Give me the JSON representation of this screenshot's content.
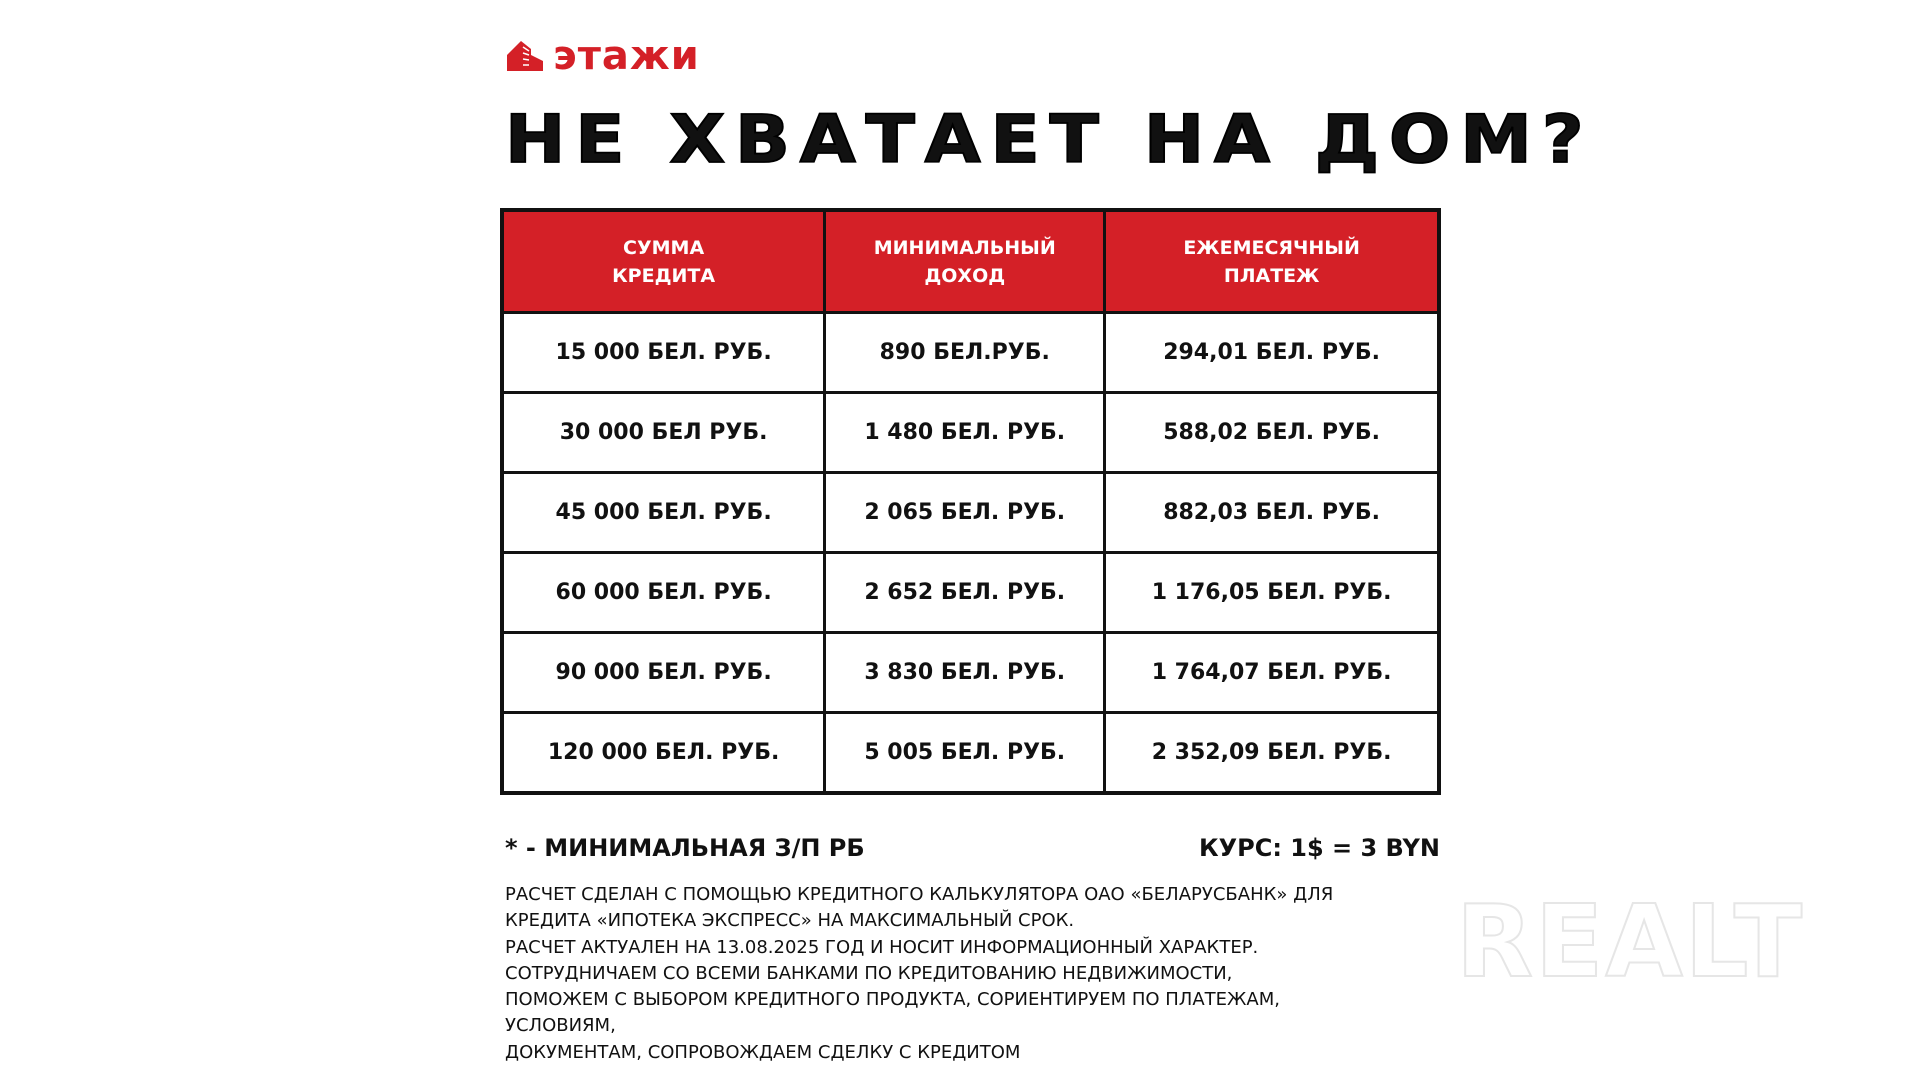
{
  "brand": {
    "logo_text": "этажи",
    "accent_color": "#d42027",
    "icon": "building-icon"
  },
  "title": "НЕ ХВАТАЕТ НА ДОМ?",
  "table": {
    "headers": [
      [
        "СУММА",
        "КРЕДИТА"
      ],
      [
        "МИНИМАЛЬНЫЙ",
        "ДОХОД"
      ],
      [
        "ЕЖЕМЕСЯЧНЫЙ",
        "ПЛАТЕЖ"
      ]
    ],
    "rows": [
      [
        "15 000 БЕЛ. РУБ.",
        "890 БЕЛ.РУБ.",
        "294,01 БЕЛ. РУБ."
      ],
      [
        "30 000 БЕЛ РУБ.",
        "1 480 БЕЛ. РУБ.",
        "588,02 БЕЛ. РУБ."
      ],
      [
        "45 000 БЕЛ. РУБ.",
        "2 065 БЕЛ. РУБ.",
        "882,03 БЕЛ. РУБ."
      ],
      [
        "60 000 БЕЛ. РУБ.",
        "2 652 БЕЛ. РУБ.",
        "1 176,05 БЕЛ. РУБ."
      ],
      [
        "90 000 БЕЛ. РУБ.",
        "3 830 БЕЛ. РУБ.",
        "1 764,07 БЕЛ. РУБ."
      ],
      [
        "120 000 БЕЛ. РУБ.",
        "5 005 БЕЛ. РУБ.",
        "2 352,09 БЕЛ. РУБ."
      ]
    ]
  },
  "notes": {
    "left": "* - МИНИМАЛЬНАЯ З/П РБ",
    "right": "КУРС: 1$ = 3 BYN"
  },
  "fine_print": [
    "РАСЧЕТ СДЕЛАН С ПОМОЩЬЮ КРЕДИТНОГО КАЛЬКУЛЯТОРА ОАО «БЕЛАРУСБАНК» ДЛЯ",
    "КРЕДИТА «ИПОТЕКА ЭКСПРЕСС» НА МАКСИМАЛЬНЫЙ СРОК.",
    "РАСЧЕТ АКТУАЛЕН НА 13.08.2025 ГОД И НОСИТ ИНФОРМАЦИОННЫЙ ХАРАКТЕР.",
    "СОТРУДНИЧАЕМ СО ВСЕМИ БАНКАМИ ПО КРЕДИТОВАНИЮ НЕДВИЖИМОСТИ,",
    "ПОМОЖЕМ С ВЫБОРОМ КРЕДИТНОГО ПРОДУКТА, СОРИЕНТИРУЕМ ПО ПЛАТЕЖАМ,",
    "УСЛОВИЯМ,",
    "ДОКУМЕНТАМ, СОПРОВОЖДАЕМ СДЕЛКУ С КРЕДИТОМ"
  ],
  "watermark": "REALT"
}
